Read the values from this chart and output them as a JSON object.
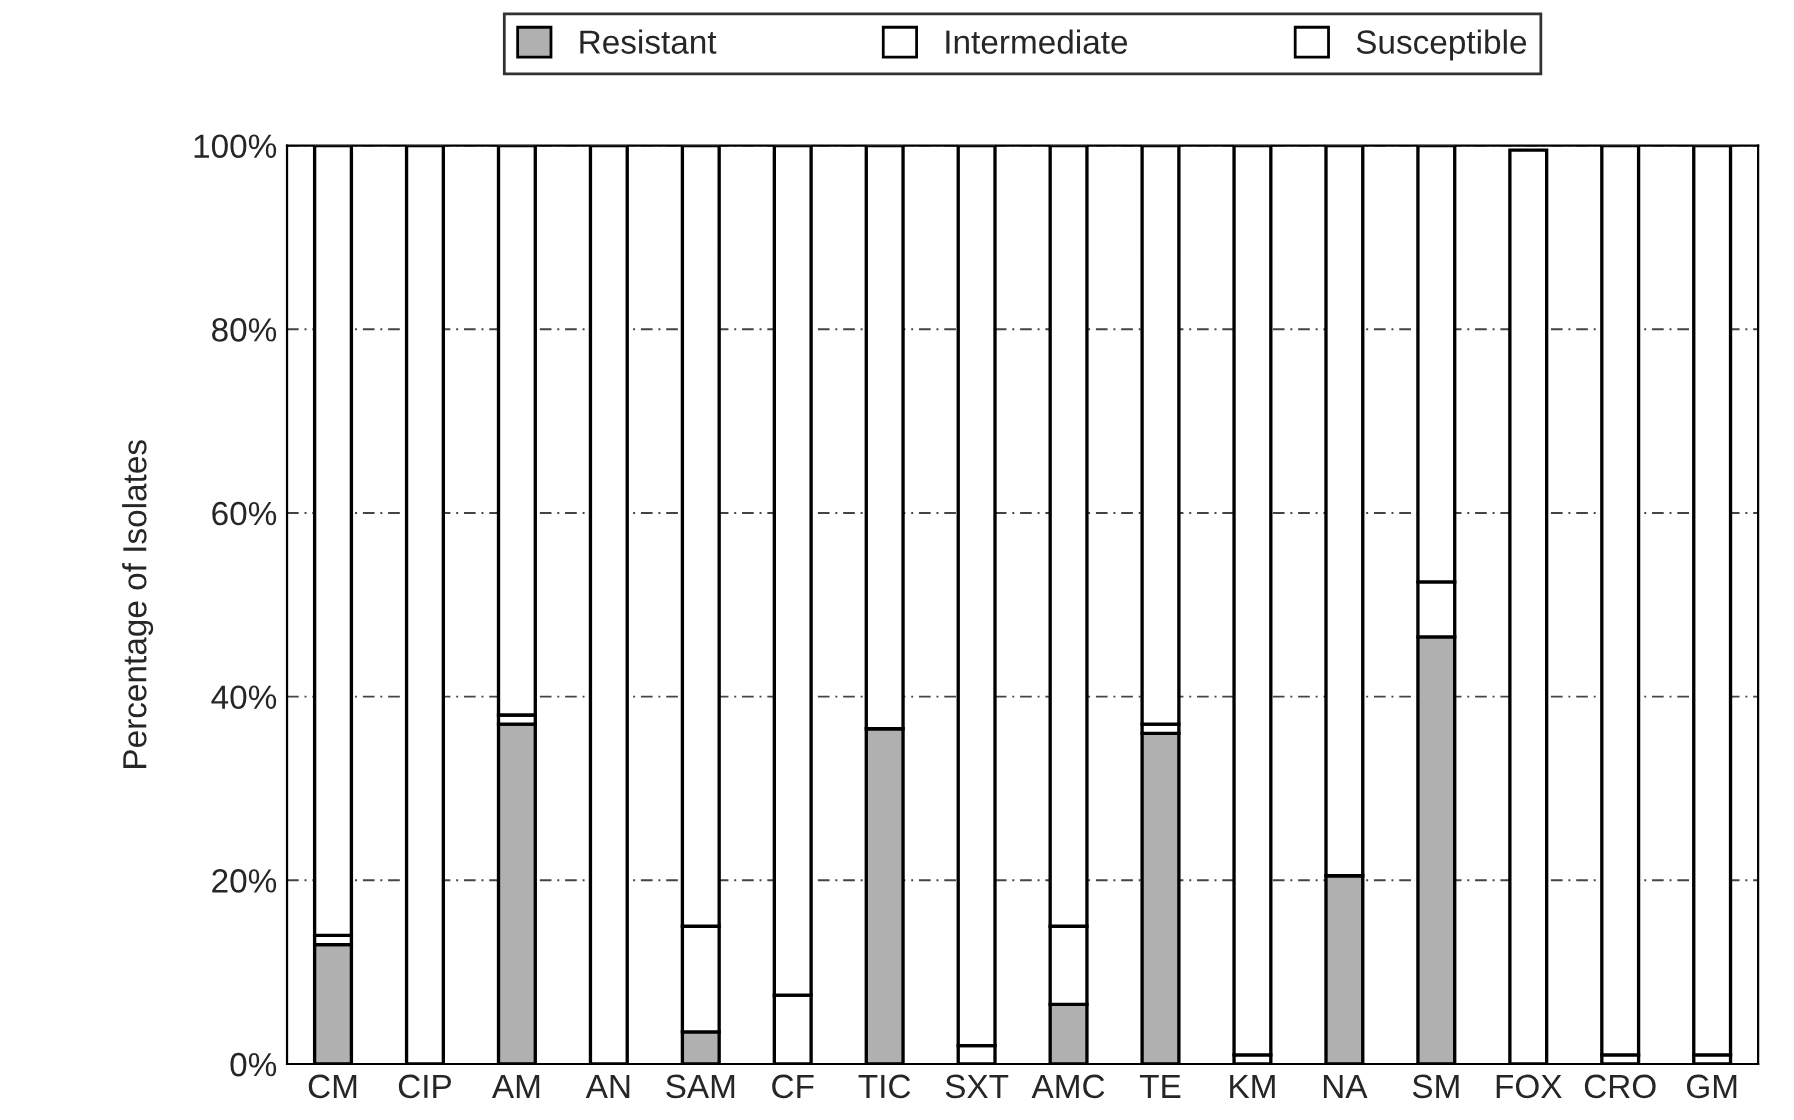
{
  "chart_data": {
    "type": "bar",
    "stacked": true,
    "ylabel": "Percentage of Isolates",
    "categories": [
      "CM",
      "CIP",
      "AM",
      "AN",
      "SAM",
      "CF",
      "TIC",
      "SXT",
      "AMC",
      "TE",
      "KM",
      "NA",
      "SM",
      "FOX",
      "CRO",
      "GM"
    ],
    "series": [
      {
        "name": "Resistant",
        "color": "#b0b0b0",
        "values": [
          13,
          0,
          37,
          0,
          3.5,
          0,
          36.5,
          0,
          6.5,
          36,
          0,
          20.5,
          46.5,
          0,
          0,
          0
        ]
      },
      {
        "name": "Intermediate",
        "color": "#ffffff",
        "values": [
          1,
          0,
          1,
          0,
          11.5,
          7.5,
          0,
          2,
          8.5,
          1,
          1,
          0,
          6,
          null,
          1,
          1
        ]
      },
      {
        "name": "Susceptible",
        "color": "#ffffff",
        "values": [
          86,
          100,
          62,
          100,
          85,
          92.5,
          63.5,
          98,
          85,
          63,
          99,
          79.5,
          47.5,
          99.5,
          99,
          99
        ]
      }
    ],
    "ylim": [
      0,
      100
    ],
    "yticks": [
      {
        "value": 0,
        "label": "0%"
      },
      {
        "value": 20,
        "label": "20%"
      },
      {
        "value": 40,
        "label": "40%"
      },
      {
        "value": 60,
        "label": "60%"
      },
      {
        "value": 80,
        "label": "80%"
      },
      {
        "value": 100,
        "label": "100%"
      }
    ],
    "grid": "y",
    "legend": "top"
  }
}
